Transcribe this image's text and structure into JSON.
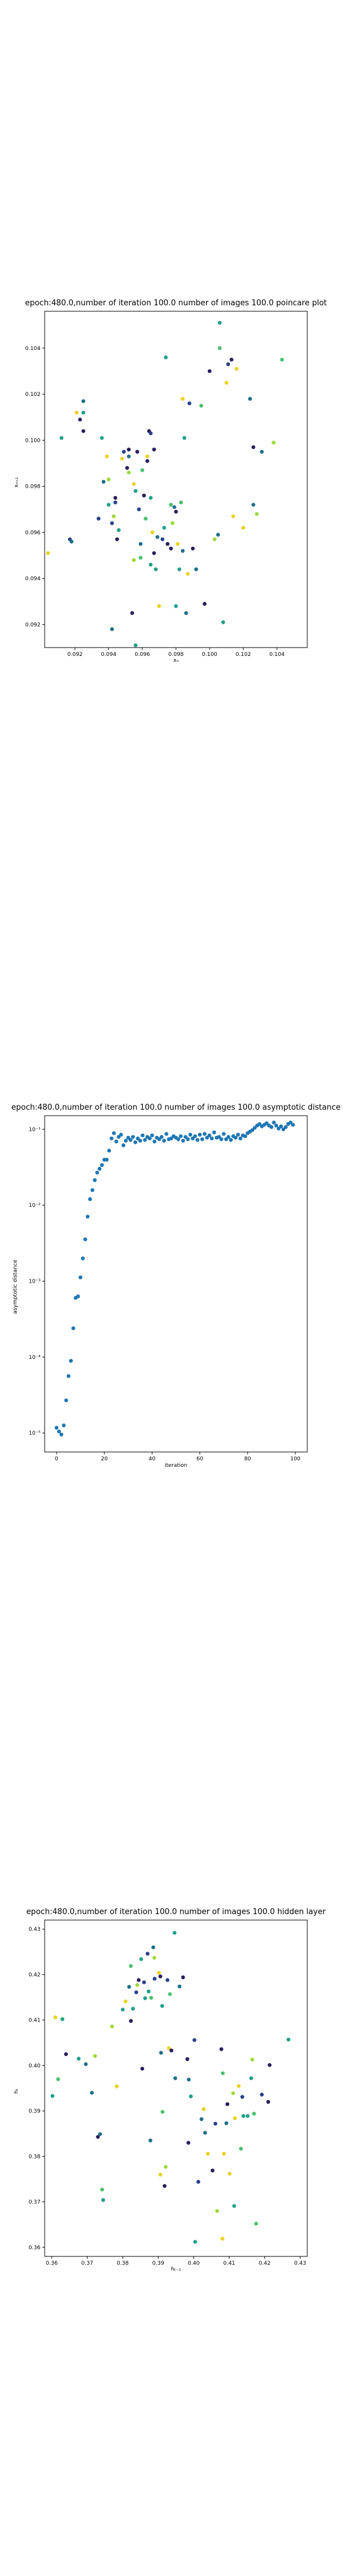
{
  "colors": {
    "viridis_classes": [
      "#2a1e5c",
      "#27408b",
      "#1f6f8b",
      "#1fa187",
      "#4ac16d",
      "#9fda3a",
      "#e8d21d"
    ],
    "series_blue": "#1f77b4"
  },
  "chart_data": [
    {
      "type": "scatter",
      "title": "epoch:480.0,number of iteration 100.0 number of images 100.0 poincare plot",
      "xlabel": "xₙ",
      "ylabel": "xₙ₊₁",
      "xlim": [
        0.0902,
        0.1058
      ],
      "ylim": [
        0.091,
        0.1056
      ],
      "xticks": [
        "0.092",
        "0.094",
        "0.096",
        "0.098",
        "0.100",
        "0.102",
        "0.104"
      ],
      "yticks": [
        "0.092",
        "0.094",
        "0.096",
        "0.098",
        "0.100",
        "0.102",
        "0.104"
      ],
      "points": [
        [
          0.0904,
          0.0951,
          6
        ],
        [
          0.0912,
          0.1001,
          3
        ],
        [
          0.0917,
          0.0957,
          1
        ],
        [
          0.0918,
          0.0956,
          2
        ],
        [
          0.0921,
          0.1012,
          6
        ],
        [
          0.0923,
          0.1009,
          0
        ],
        [
          0.0925,
          0.1012,
          3
        ],
        [
          0.0925,
          0.1017,
          2
        ],
        [
          0.0925,
          0.1004,
          0
        ],
        [
          0.0934,
          0.0966,
          1
        ],
        [
          0.0936,
          0.1001,
          3
        ],
        [
          0.0937,
          0.0982,
          2
        ],
        [
          0.0939,
          0.0993,
          6
        ],
        [
          0.094,
          0.0983,
          5
        ],
        [
          0.094,
          0.0972,
          3
        ],
        [
          0.0942,
          0.0964,
          1
        ],
        [
          0.0942,
          0.0918,
          2
        ],
        [
          0.0943,
          0.0967,
          5
        ],
        [
          0.0944,
          0.0975,
          0
        ],
        [
          0.0944,
          0.0973,
          1
        ],
        [
          0.0945,
          0.0957,
          0
        ],
        [
          0.0946,
          0.0961,
          3
        ],
        [
          0.0948,
          0.0992,
          6
        ],
        [
          0.0949,
          0.0995,
          1
        ],
        [
          0.0951,
          0.0988,
          0
        ],
        [
          0.0952,
          0.0986,
          5
        ],
        [
          0.0952,
          0.0993,
          2
        ],
        [
          0.0952,
          0.0996,
          0
        ],
        [
          0.0954,
          0.0925,
          0
        ],
        [
          0.0955,
          0.0948,
          5
        ],
        [
          0.0955,
          0.0981,
          6
        ],
        [
          0.0956,
          0.0911,
          3
        ],
        [
          0.0956,
          0.0978,
          3
        ],
        [
          0.0957,
          0.0995,
          0
        ],
        [
          0.0958,
          0.097,
          1
        ],
        [
          0.0959,
          0.0949,
          4
        ],
        [
          0.0959,
          0.0955,
          2
        ],
        [
          0.096,
          0.0987,
          4
        ],
        [
          0.0961,
          0.0976,
          0
        ],
        [
          0.0962,
          0.0966,
          4
        ],
        [
          0.0963,
          0.0991,
          0
        ],
        [
          0.0963,
          0.0993,
          6
        ],
        [
          0.0964,
          0.1004,
          0
        ],
        [
          0.0965,
          0.1003,
          1
        ],
        [
          0.0965,
          0.0975,
          3
        ],
        [
          0.0965,
          0.0946,
          3
        ],
        [
          0.0966,
          0.096,
          6
        ],
        [
          0.0967,
          0.0996,
          0
        ],
        [
          0.0967,
          0.0951,
          0
        ],
        [
          0.0968,
          0.0944,
          3
        ],
        [
          0.0969,
          0.0958,
          2
        ],
        [
          0.097,
          0.0928,
          6
        ],
        [
          0.0972,
          0.0957,
          1
        ],
        [
          0.0973,
          0.0962,
          3
        ],
        [
          0.0974,
          0.1036,
          3
        ],
        [
          0.0975,
          0.0955,
          0
        ],
        [
          0.0977,
          0.0972,
          4
        ],
        [
          0.0977,
          0.0953,
          0
        ],
        [
          0.0978,
          0.0964,
          5
        ],
        [
          0.0979,
          0.0971,
          2
        ],
        [
          0.098,
          0.0928,
          3
        ],
        [
          0.098,
          0.0969,
          0
        ],
        [
          0.0981,
          0.0955,
          6
        ],
        [
          0.0982,
          0.0944,
          3
        ],
        [
          0.0983,
          0.0973,
          4
        ],
        [
          0.0984,
          0.1018,
          6
        ],
        [
          0.0984,
          0.0952,
          2
        ],
        [
          0.0985,
          0.1001,
          3
        ],
        [
          0.0986,
          0.0925,
          2
        ],
        [
          0.0987,
          0.0942,
          6
        ],
        [
          0.0988,
          0.1016,
          1
        ],
        [
          0.099,
          0.0953,
          0
        ],
        [
          0.0992,
          0.0944,
          2
        ],
        [
          0.0995,
          0.1015,
          4
        ],
        [
          0.0997,
          0.0929,
          0
        ],
        [
          0.1,
          0.103,
          0
        ],
        [
          0.1003,
          0.0957,
          5
        ],
        [
          0.1005,
          0.0959,
          2
        ],
        [
          0.1006,
          0.1051,
          3
        ],
        [
          0.1006,
          0.104,
          4
        ],
        [
          0.1008,
          0.0921,
          3
        ],
        [
          0.101,
          0.1025,
          6
        ],
        [
          0.1011,
          0.1033,
          1
        ],
        [
          0.1013,
          0.1035,
          0
        ],
        [
          0.1014,
          0.0967,
          6
        ],
        [
          0.1016,
          0.1031,
          6
        ],
        [
          0.102,
          0.0962,
          6
        ],
        [
          0.1024,
          0.1018,
          2
        ],
        [
          0.1026,
          0.0972,
          2
        ],
        [
          0.1026,
          0.0997,
          0
        ],
        [
          0.1028,
          0.0968,
          5
        ],
        [
          0.1031,
          0.0995,
          2
        ],
        [
          0.1038,
          0.0999,
          5
        ],
        [
          0.1043,
          0.1035,
          4
        ]
      ]
    },
    {
      "type": "scatter",
      "title": "epoch:480.0,number of iteration 100.0  number of images 100.0 asymptotic distance",
      "xlabel": "iteration",
      "ylabel": "asymptotic distance",
      "xlim": [
        -5,
        105
      ],
      "yscale": "log",
      "ylim_log10": [
        -5.25,
        -0.82
      ],
      "xticks": [
        "0",
        "20",
        "40",
        "60",
        "80",
        "100"
      ],
      "yticks": [
        "10⁻⁵",
        "10⁻⁴",
        "10⁻³",
        "10⁻²",
        "10⁻¹"
      ],
      "x": [
        0,
        1,
        2,
        3,
        4,
        5,
        6,
        7,
        8,
        9,
        10,
        11,
        12,
        13,
        14,
        15,
        16,
        17,
        18,
        19,
        20,
        21,
        22,
        23,
        24,
        25,
        26,
        27,
        28,
        29,
        30,
        31,
        32,
        33,
        34,
        35,
        36,
        37,
        38,
        39,
        40,
        41,
        42,
        43,
        44,
        45,
        46,
        47,
        48,
        49,
        50,
        51,
        52,
        53,
        54,
        55,
        56,
        57,
        58,
        59,
        60,
        61,
        62,
        63,
        64,
        65,
        66,
        67,
        68,
        69,
        70,
        71,
        72,
        73,
        74,
        75,
        76,
        77,
        78,
        79,
        80,
        81,
        82,
        83,
        84,
        85,
        86,
        87,
        88,
        89,
        90,
        91,
        92,
        93,
        94,
        95,
        96,
        97,
        98,
        99
      ],
      "y_log10": [
        -4.93,
        -4.98,
        -5.02,
        -4.9,
        -4.57,
        -4.25,
        -4.05,
        -3.62,
        -3.22,
        -3.2,
        -2.95,
        -2.7,
        -2.45,
        -2.15,
        -1.92,
        -1.8,
        -1.67,
        -1.57,
        -1.52,
        -1.47,
        -1.4,
        -1.4,
        -1.28,
        -1.12,
        -1.05,
        -1.16,
        -1.1,
        -1.07,
        -1.21,
        -1.15,
        -1.11,
        -1.14,
        -1.1,
        -1.17,
        -1.12,
        -1.15,
        -1.08,
        -1.14,
        -1.1,
        -1.12,
        -1.08,
        -1.16,
        -1.11,
        -1.13,
        -1.1,
        -1.15,
        -1.06,
        -1.13,
        -1.12,
        -1.09,
        -1.11,
        -1.13,
        -1.09,
        -1.15,
        -1.1,
        -1.13,
        -1.07,
        -1.12,
        -1.09,
        -1.14,
        -1.07,
        -1.13,
        -1.06,
        -1.11,
        -1.08,
        -1.12,
        -1.04,
        -1.11,
        -1.1,
        -1.13,
        -1.06,
        -1.13,
        -1.1,
        -1.14,
        -1.09,
        -1.11,
        -1.07,
        -1.12,
        -1.08,
        -1.09,
        -1.05,
        -1.03,
        -1.01,
        -0.98,
        -0.95,
        -0.93,
        -0.96,
        -0.94,
        -0.92,
        -0.95,
        -0.97,
        -0.91,
        -0.95,
        -0.99,
        -0.96,
        -1.0,
        -0.97,
        -0.93,
        -0.91,
        -0.94
      ]
    },
    {
      "type": "scatter",
      "title": "epoch:480.0,number of iteration 100.0  number of images 100.0 hidden layer",
      "xlabel": "hₜ₋₁",
      "ylabel": "hₜ",
      "xlim": [
        0.358,
        0.432
      ],
      "ylim": [
        0.358,
        0.432
      ],
      "xticks": [
        "0.36",
        "0.37",
        "0.38",
        "0.39",
        "0.40",
        "0.41",
        "0.42",
        "0.43"
      ],
      "yticks": [
        "0.36",
        "0.37",
        "0.38",
        "0.39",
        "0.40",
        "0.41",
        "0.42",
        "0.43"
      ],
      "points": [
        [
          0.3602,
          0.3933,
          3
        ],
        [
          0.361,
          0.4106,
          6
        ],
        [
          0.3618,
          0.397,
          4
        ],
        [
          0.363,
          0.4102,
          3
        ],
        [
          0.364,
          0.4025,
          0
        ],
        [
          0.3676,
          0.4015,
          3
        ],
        [
          0.3696,
          0.4003,
          2
        ],
        [
          0.3713,
          0.394,
          2
        ],
        [
          0.3722,
          0.4021,
          5
        ],
        [
          0.373,
          0.3843,
          0
        ],
        [
          0.3736,
          0.3849,
          2
        ],
        [
          0.3742,
          0.3727,
          4
        ],
        [
          0.3745,
          0.3704,
          3
        ],
        [
          0.377,
          0.4086,
          5
        ],
        [
          0.3783,
          0.3954,
          6
        ],
        [
          0.38,
          0.4123,
          3
        ],
        [
          0.3808,
          0.4141,
          6
        ],
        [
          0.3818,
          0.4173,
          2
        ],
        [
          0.3823,
          0.4219,
          4
        ],
        [
          0.3823,
          0.4098,
          0
        ],
        [
          0.3829,
          0.4125,
          3
        ],
        [
          0.3838,
          0.4161,
          1
        ],
        [
          0.3841,
          0.4177,
          5
        ],
        [
          0.3845,
          0.4188,
          0
        ],
        [
          0.3852,
          0.4234,
          3
        ],
        [
          0.3855,
          0.3993,
          0
        ],
        [
          0.386,
          0.4183,
          1
        ],
        [
          0.3863,
          0.4148,
          3
        ],
        [
          0.387,
          0.4246,
          1
        ],
        [
          0.3873,
          0.4163,
          3
        ],
        [
          0.3878,
          0.3835,
          2
        ],
        [
          0.388,
          0.4149,
          4
        ],
        [
          0.3886,
          0.426,
          2
        ],
        [
          0.3889,
          0.4237,
          5
        ],
        [
          0.389,
          0.4191,
          1
        ],
        [
          0.3902,
          0.4204,
          6
        ],
        [
          0.3906,
          0.4196,
          0
        ],
        [
          0.3906,
          0.376,
          6
        ],
        [
          0.3908,
          0.4028,
          2
        ],
        [
          0.3911,
          0.4131,
          3
        ],
        [
          0.3912,
          0.3898,
          4
        ],
        [
          0.3918,
          0.3735,
          0
        ],
        [
          0.3921,
          0.3777,
          5
        ],
        [
          0.3926,
          0.4188,
          1
        ],
        [
          0.393,
          0.4038,
          6
        ],
        [
          0.3933,
          0.4157,
          4
        ],
        [
          0.3937,
          0.4033,
          0
        ],
        [
          0.3946,
          0.4292,
          3
        ],
        [
          0.3948,
          0.3972,
          2
        ],
        [
          0.396,
          0.4174,
          2
        ],
        [
          0.397,
          0.4194,
          0
        ],
        [
          0.3982,
          0.4014,
          0
        ],
        [
          0.3985,
          0.383,
          0
        ],
        [
          0.3986,
          0.3969,
          2
        ],
        [
          0.3992,
          0.3932,
          3
        ],
        [
          0.4002,
          0.4056,
          1
        ],
        [
          0.4004,
          0.3612,
          3
        ],
        [
          0.4013,
          0.3744,
          1
        ],
        [
          0.4022,
          0.3882,
          2
        ],
        [
          0.4028,
          0.3904,
          6
        ],
        [
          0.4032,
          0.3852,
          2
        ],
        [
          0.404,
          0.3806,
          6
        ],
        [
          0.4053,
          0.3769,
          0
        ],
        [
          0.4061,
          0.3872,
          1
        ],
        [
          0.4066,
          0.368,
          5
        ],
        [
          0.4078,
          0.4036,
          0
        ],
        [
          0.4081,
          0.3619,
          6
        ],
        [
          0.4082,
          0.3983,
          4
        ],
        [
          0.4085,
          0.3806,
          6
        ],
        [
          0.4092,
          0.3873,
          2
        ],
        [
          0.4095,
          0.3915,
          0
        ],
        [
          0.4101,
          0.3762,
          6
        ],
        [
          0.4111,
          0.3939,
          5
        ],
        [
          0.4114,
          0.3691,
          3
        ],
        [
          0.4116,
          0.3884,
          6
        ],
        [
          0.4127,
          0.3955,
          6
        ],
        [
          0.4133,
          0.3817,
          4
        ],
        [
          0.4137,
          0.3931,
          1
        ],
        [
          0.414,
          0.3889,
          3
        ],
        [
          0.4152,
          0.3889,
          3
        ],
        [
          0.4162,
          0.3972,
          3
        ],
        [
          0.4165,
          0.4013,
          5
        ],
        [
          0.417,
          0.3894,
          4
        ],
        [
          0.4176,
          0.3652,
          4
        ],
        [
          0.4192,
          0.3936,
          1
        ],
        [
          0.421,
          0.392,
          0
        ],
        [
          0.4214,
          0.4001,
          0
        ],
        [
          0.4267,
          0.4057,
          3
        ]
      ]
    }
  ]
}
